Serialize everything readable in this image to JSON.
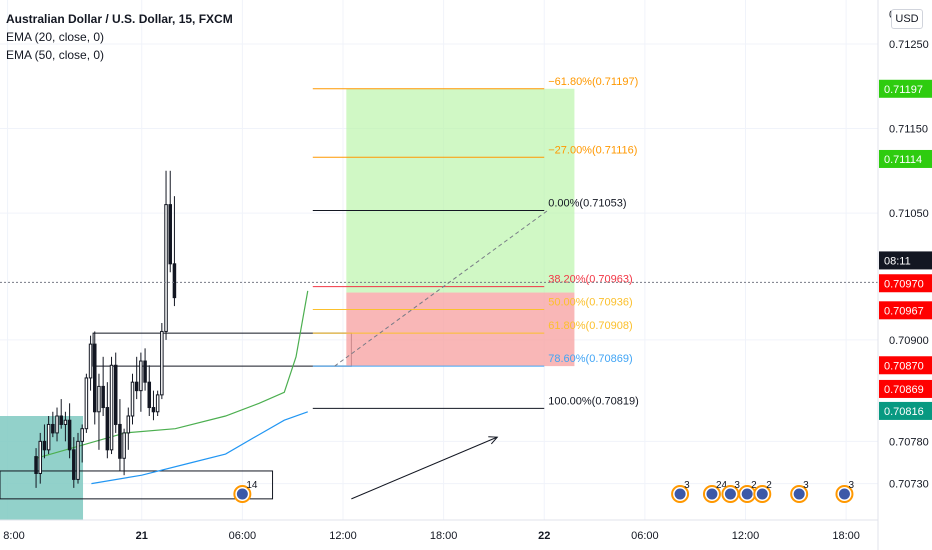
{
  "header": {
    "title": "Australian Dollar / U.S. Dollar, 15, FXCM",
    "indicators": [
      "EMA (20, close, 0)",
      "EMA (50, close, 0)"
    ],
    "currency_button": "USD"
  },
  "colors": {
    "bull": "#131722",
    "bear": "#131722",
    "ema20": "#4caf50",
    "ema50": "#2196f3",
    "target_zone": "#b7f5a6",
    "stop_zone": "#f7a5a5",
    "teal_box": "#7fc9c1",
    "fib_extension": "#ff9800",
    "fib_382": "#f23645",
    "fib_50": "#fbc02d",
    "fib_618": "#fbc02d",
    "fib_786": "#42a5f5",
    "fib_neutral": "#131722",
    "price_tag_green": "#2ecc0f",
    "price_tag_red": "#ff0000",
    "price_tag_teal": "#089981",
    "crosshair_tag": "#131722"
  },
  "chart_data": {
    "type": "candlestick",
    "symbol": "AUDUSD",
    "timeframe": "15",
    "y_axis_ticks": [
      0.7073,
      0.7078,
      0.709,
      0.7105,
      0.7115,
      0.7125
    ],
    "y_axis_tick_labels": [
      "0.70730",
      "0.70780",
      "0.70900",
      "0.71050",
      "0.71150",
      "0.71250"
    ],
    "y_axis_top_label": "0",
    "ylim": [
      0.70687,
      0.71302
    ],
    "x_axis_labels": [
      "8:00",
      "21",
      "06:00",
      "12:00",
      "18:00",
      "22",
      "06:00",
      "12:00",
      "18:00"
    ],
    "x_axis_bold": [
      "21",
      "22"
    ],
    "x_axis_times_hours": [
      -16,
      -8,
      -2,
      4,
      10,
      16,
      22,
      28,
      34
    ],
    "xlim_hours": [
      -16.45,
      35.9
    ],
    "candles": [
      {
        "o": 0.70762,
        "h": 0.70772,
        "l": 0.70725,
        "c": 0.70742
      },
      {
        "o": 0.70742,
        "h": 0.7079,
        "l": 0.7073,
        "c": 0.7078
      },
      {
        "o": 0.7078,
        "h": 0.708,
        "l": 0.7076,
        "c": 0.7077
      },
      {
        "o": 0.7077,
        "h": 0.7081,
        "l": 0.70765,
        "c": 0.708
      },
      {
        "o": 0.708,
        "h": 0.70815,
        "l": 0.70785,
        "c": 0.7079
      },
      {
        "o": 0.7079,
        "h": 0.7082,
        "l": 0.7078,
        "c": 0.7081
      },
      {
        "o": 0.7081,
        "h": 0.7083,
        "l": 0.70795,
        "c": 0.708
      },
      {
        "o": 0.708,
        "h": 0.70815,
        "l": 0.7078,
        "c": 0.70805
      },
      {
        "o": 0.70805,
        "h": 0.70825,
        "l": 0.7076,
        "c": 0.7077
      },
      {
        "o": 0.7077,
        "h": 0.70785,
        "l": 0.70725,
        "c": 0.70735
      },
      {
        "o": 0.70735,
        "h": 0.7079,
        "l": 0.7073,
        "c": 0.7078
      },
      {
        "o": 0.7078,
        "h": 0.708,
        "l": 0.70755,
        "c": 0.70795
      },
      {
        "o": 0.70795,
        "h": 0.7086,
        "l": 0.7079,
        "c": 0.70855
      },
      {
        "o": 0.70855,
        "h": 0.70905,
        "l": 0.7084,
        "c": 0.70895
      },
      {
        "o": 0.70895,
        "h": 0.7091,
        "l": 0.708,
        "c": 0.70815
      },
      {
        "o": 0.70815,
        "h": 0.7086,
        "l": 0.7077,
        "c": 0.70845
      },
      {
        "o": 0.70845,
        "h": 0.7088,
        "l": 0.7081,
        "c": 0.7082
      },
      {
        "o": 0.7082,
        "h": 0.7085,
        "l": 0.7076,
        "c": 0.7077
      },
      {
        "o": 0.7077,
        "h": 0.7088,
        "l": 0.70765,
        "c": 0.7087
      },
      {
        "o": 0.7087,
        "h": 0.70885,
        "l": 0.7079,
        "c": 0.708
      },
      {
        "o": 0.708,
        "h": 0.7083,
        "l": 0.70745,
        "c": 0.7076
      },
      {
        "o": 0.7076,
        "h": 0.70795,
        "l": 0.7074,
        "c": 0.7079
      },
      {
        "o": 0.7079,
        "h": 0.7082,
        "l": 0.7077,
        "c": 0.7081
      },
      {
        "o": 0.7081,
        "h": 0.7086,
        "l": 0.708,
        "c": 0.7085
      },
      {
        "o": 0.7085,
        "h": 0.7088,
        "l": 0.7083,
        "c": 0.7084
      },
      {
        "o": 0.7084,
        "h": 0.70885,
        "l": 0.70815,
        "c": 0.70875
      },
      {
        "o": 0.70875,
        "h": 0.7089,
        "l": 0.7084,
        "c": 0.7085
      },
      {
        "o": 0.7085,
        "h": 0.7087,
        "l": 0.7081,
        "c": 0.7082
      },
      {
        "o": 0.7082,
        "h": 0.7084,
        "l": 0.70805,
        "c": 0.70815
      },
      {
        "o": 0.70815,
        "h": 0.7084,
        "l": 0.7081,
        "c": 0.70835
      },
      {
        "o": 0.70835,
        "h": 0.7092,
        "l": 0.7083,
        "c": 0.7091
      },
      {
        "o": 0.7091,
        "h": 0.711,
        "l": 0.709,
        "c": 0.7106
      },
      {
        "o": 0.7106,
        "h": 0.711,
        "l": 0.7098,
        "c": 0.7099
      },
      {
        "o": 0.7099,
        "h": 0.7107,
        "l": 0.7094,
        "c": 0.7095
      }
    ],
    "candles_start_hour": -14.3,
    "candle_spacing_hours": 0.25,
    "ema20_points": [
      [
        -14.3,
        0.7076
      ],
      [
        -9,
        0.7079
      ],
      [
        -6,
        0.70795
      ],
      [
        -3,
        0.7081
      ],
      [
        -1,
        0.70825
      ],
      [
        0.5,
        0.70838
      ],
      [
        1.2,
        0.7088
      ],
      [
        1.9,
        0.70958
      ]
    ],
    "ema50_points": [
      [
        -11,
        0.7073
      ],
      [
        -8,
        0.7074
      ],
      [
        -5,
        0.70755
      ],
      [
        -3,
        0.70765
      ],
      [
        -1,
        0.70788
      ],
      [
        0.5,
        0.70805
      ],
      [
        1.9,
        0.70815
      ]
    ],
    "fib_levels": [
      {
        "label": "−61.80%(0.71197)",
        "price": 0.71197,
        "color": "#ff9800",
        "x0": 2.2,
        "x1": 16.0
      },
      {
        "label": "−27.00%(0.71116)",
        "price": 0.71116,
        "color": "#ff9800",
        "x0": 2.2,
        "x1": 16.0
      },
      {
        "label": "0.00%(0.71053)",
        "price": 0.71053,
        "color": "#131722",
        "x0": 2.2,
        "x1": 16.0
      },
      {
        "label": "38.20%(0.70963)",
        "price": 0.70963,
        "color": "#f23645",
        "x0": 2.2,
        "x1": 16.0
      },
      {
        "label": "50.00%(0.70936)",
        "price": 0.70936,
        "color": "#fbc02d",
        "x0": 2.2,
        "x1": 16.0
      },
      {
        "label": "61.80%(0.70908)",
        "price": 0.70908,
        "color": "#fbc02d",
        "x0": 2.2,
        "x1": 16.0
      },
      {
        "label": "78.60%(0.70869)",
        "price": 0.70869,
        "color": "#42a5f5",
        "x0": 2.2,
        "x1": 16.0
      },
      {
        "label": "100.00%(0.70819)",
        "price": 0.70819,
        "color": "#131722",
        "x0": 2.2,
        "x1": 16.0
      }
    ],
    "position_tool": {
      "entry": 0.70956,
      "target": 0.71197,
      "stop": 0.70869,
      "x0": 4.2,
      "x1": 17.8
    },
    "zones": [
      {
        "kind": "teal",
        "x0": -16.45,
        "x1": -11.5,
        "y0": 0.7081,
        "y1": 0.7068
      },
      {
        "kind": "rect",
        "x0": -10.9,
        "x1": 4.5,
        "y0": 0.70908,
        "y1": 0.70869
      },
      {
        "kind": "rect",
        "x0": -16.45,
        "x1": -0.2,
        "y0": 0.70745,
        "y1": 0.70712
      }
    ],
    "trend_arrow": {
      "from": [
        4.5,
        0.70712
      ],
      "to": [
        13.2,
        0.70785
      ]
    },
    "dashed_projection": {
      "from": [
        3.5,
        0.70869
      ],
      "to": [
        16.2,
        0.71053
      ]
    },
    "crosshair": {
      "price": 0.70968,
      "label": "08:11"
    },
    "price_tags": [
      {
        "text": "0.71197",
        "price": 0.71197,
        "color": "#2ecc0f"
      },
      {
        "text": "0.71114",
        "price": 0.71114,
        "color": "#2ecc0f"
      },
      {
        "text": "08:11",
        "price": 0.70994,
        "color": "#131722"
      },
      {
        "text": "0.70970",
        "price": 0.70967,
        "color": "#ff0000"
      },
      {
        "text": "0.70967",
        "price": 0.70935,
        "color": "#ff0000"
      },
      {
        "text": "0.70870",
        "price": 0.7087,
        "color": "#ff0000"
      },
      {
        "text": "0.70869",
        "price": 0.70842,
        "color": "#ff0000"
      },
      {
        "text": "0.70816",
        "price": 0.70816,
        "color": "#089981"
      }
    ],
    "events": [
      {
        "hour": -2.0,
        "label": "14"
      },
      {
        "hour": 24.1,
        "label": "3"
      },
      {
        "hour": 26.0,
        "label": "24"
      },
      {
        "hour": 27.1,
        "label": "3"
      },
      {
        "hour": 28.1,
        "label": "2"
      },
      {
        "hour": 29.0,
        "label": "2"
      },
      {
        "hour": 31.2,
        "label": "3"
      },
      {
        "hour": 33.9,
        "label": "3"
      }
    ]
  }
}
